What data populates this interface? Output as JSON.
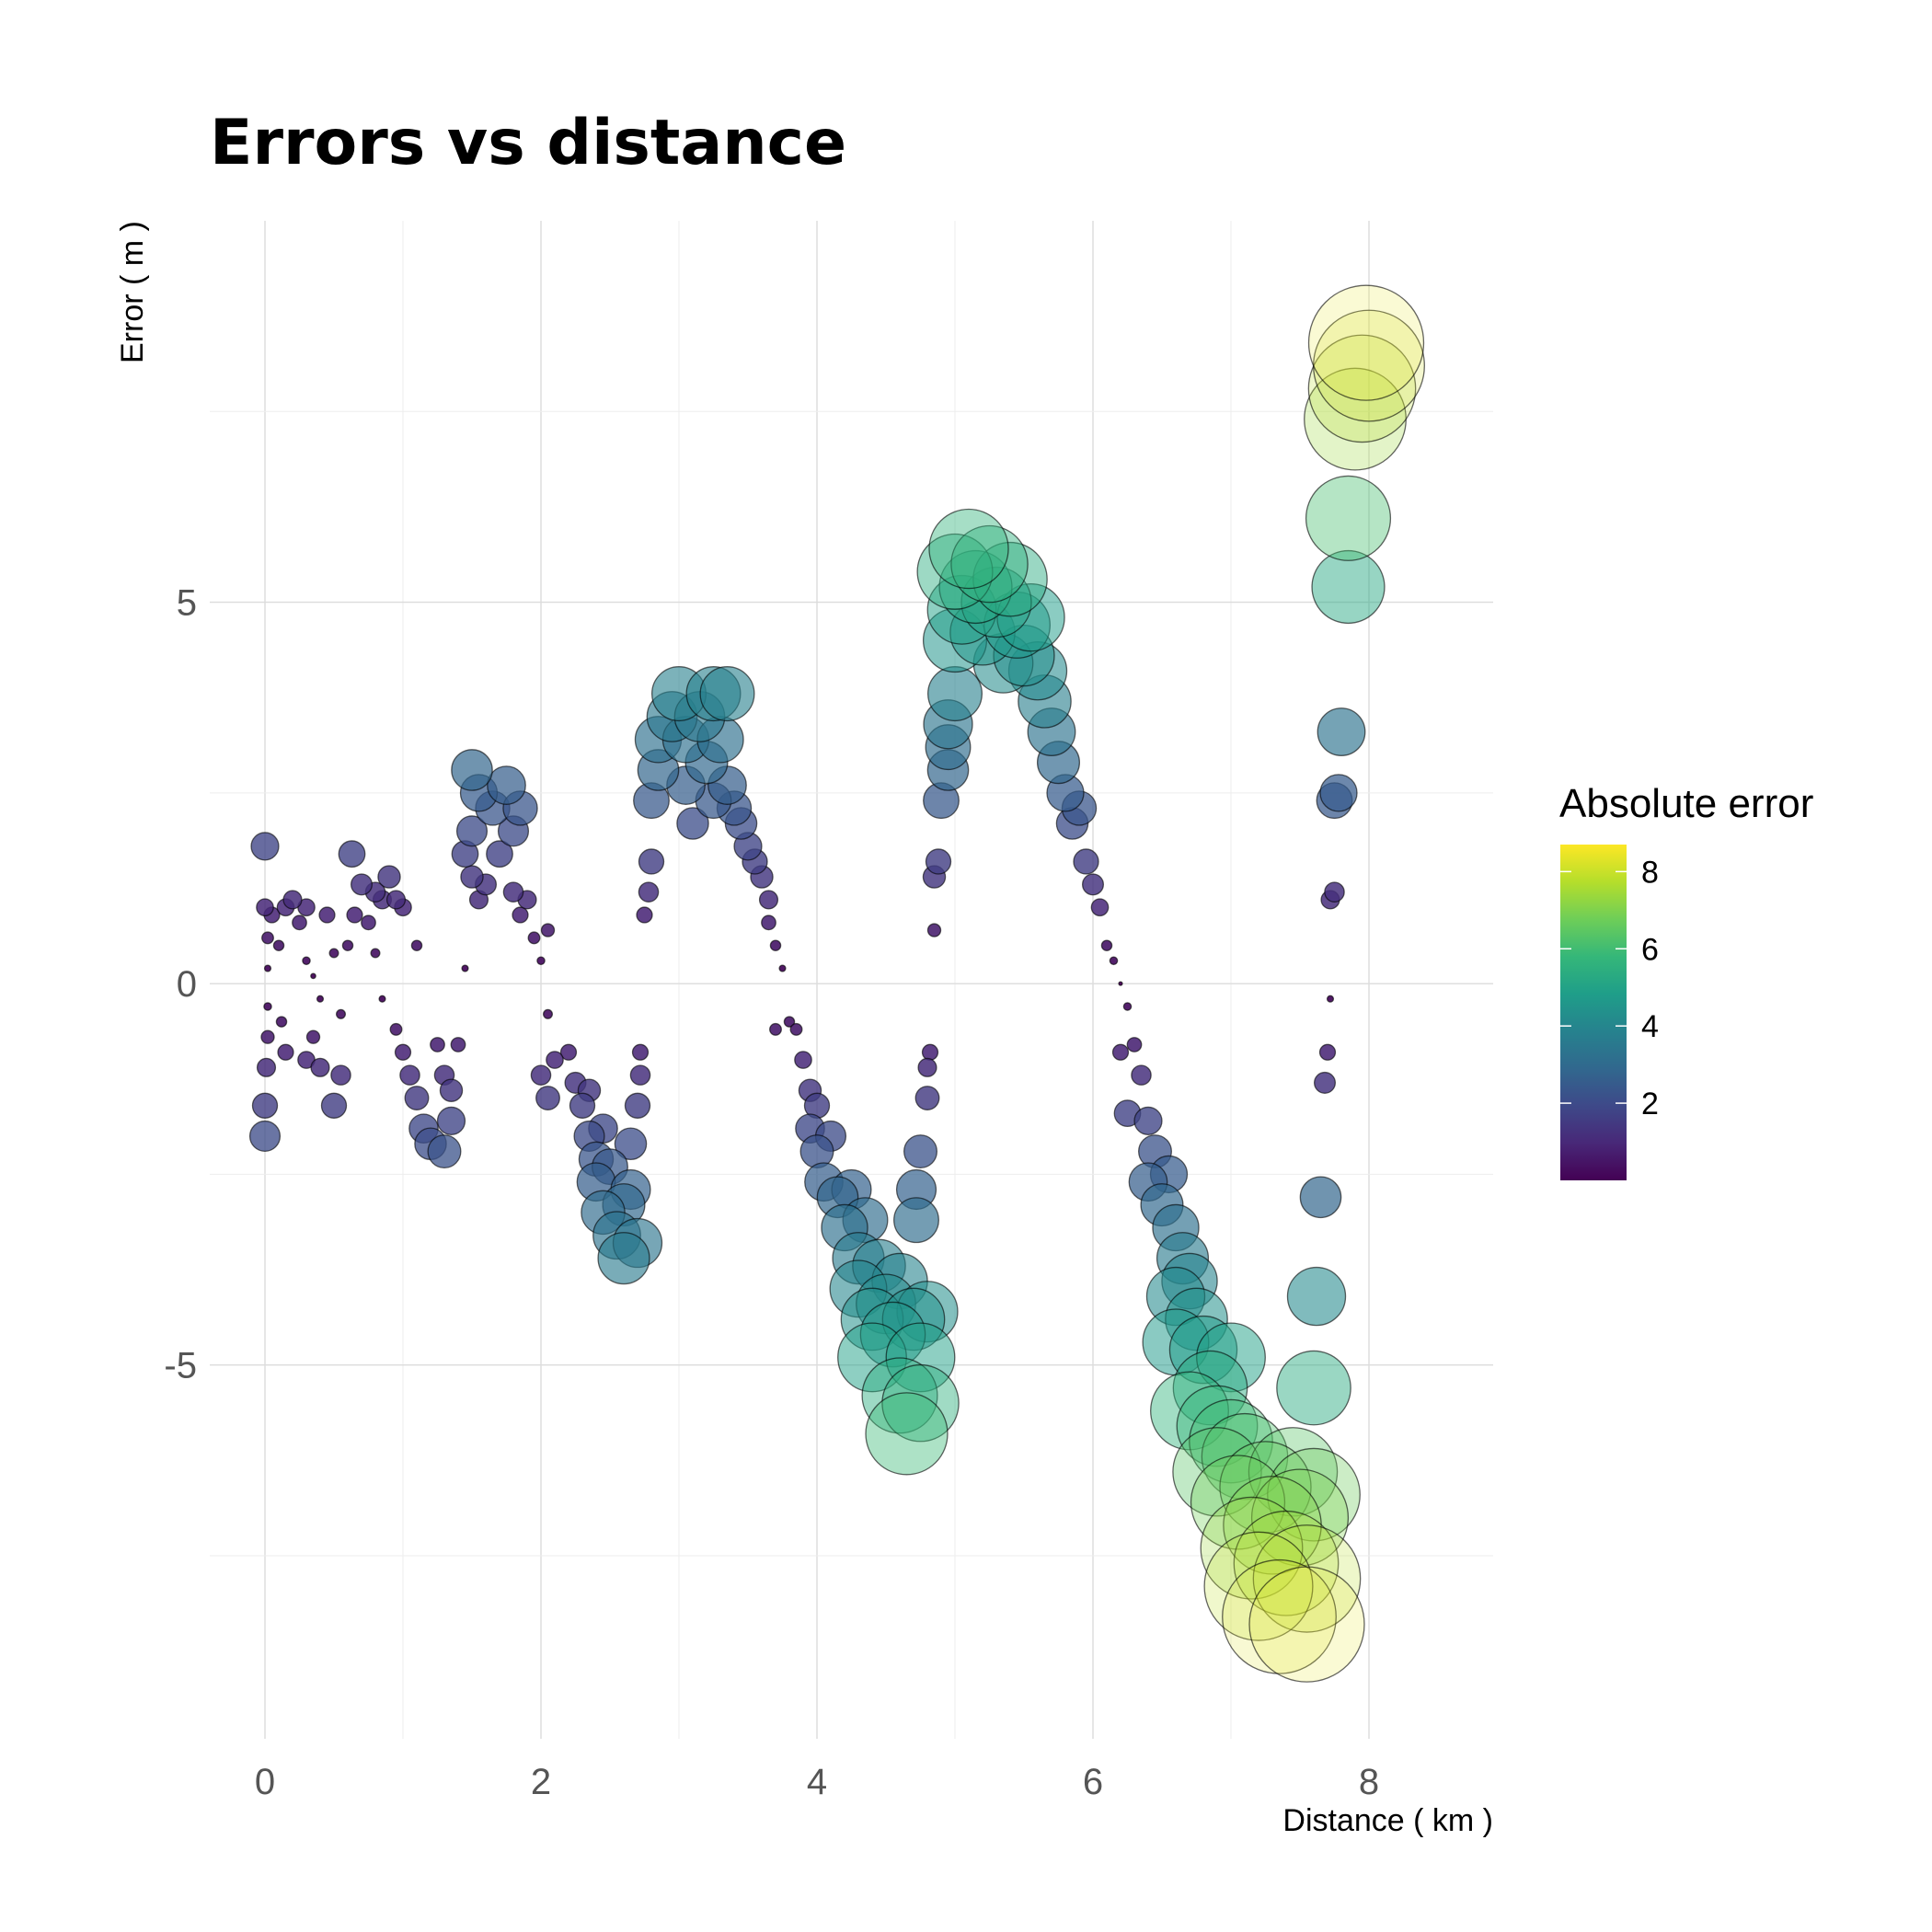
{
  "chart_data": {
    "type": "scatter",
    "title": "Errors vs distance",
    "xlabel": "Distance ( km )",
    "ylabel": "Error ( m )",
    "xlim": [
      -0.4,
      8.9
    ],
    "ylim": [
      -9.9,
      10.0
    ],
    "x_ticks": [
      0,
      2,
      4,
      6,
      8
    ],
    "y_ticks": [
      -5,
      0,
      5
    ],
    "grid": true,
    "legend": {
      "title": "Absolute error",
      "position": "right",
      "type": "colorbar",
      "range": [
        0,
        8.7
      ],
      "ticks": [
        2,
        4,
        6,
        8
      ],
      "colormap": "viridis",
      "colors": [
        "#440154",
        "#482878",
        "#3e4989",
        "#31688e",
        "#26828e",
        "#1f9e89",
        "#35b779",
        "#6ece58",
        "#b5de2b",
        "#fde725"
      ]
    },
    "encoding": {
      "color": "Absolute error",
      "size": "Absolute error"
    },
    "points": [
      {
        "x": 0.0,
        "y": 1.8
      },
      {
        "x": 0.0,
        "y": 1.0
      },
      {
        "x": 0.02,
        "y": 0.6
      },
      {
        "x": 0.02,
        "y": 0.2
      },
      {
        "x": 0.02,
        "y": -0.3
      },
      {
        "x": 0.02,
        "y": -0.7
      },
      {
        "x": 0.01,
        "y": -1.1
      },
      {
        "x": 0.0,
        "y": -1.6
      },
      {
        "x": 0.0,
        "y": -2.0
      },
      {
        "x": 0.05,
        "y": 0.9
      },
      {
        "x": 0.1,
        "y": 0.5
      },
      {
        "x": 0.12,
        "y": -0.5
      },
      {
        "x": 0.15,
        "y": -0.9
      },
      {
        "x": 0.15,
        "y": 1.0
      },
      {
        "x": 0.2,
        "y": 1.1
      },
      {
        "x": 0.25,
        "y": 0.8
      },
      {
        "x": 0.3,
        "y": 1.0
      },
      {
        "x": 0.3,
        "y": 0.3
      },
      {
        "x": 0.35,
        "y": 0.1
      },
      {
        "x": 0.4,
        "y": -0.2
      },
      {
        "x": 0.35,
        "y": -0.7
      },
      {
        "x": 0.3,
        "y": -1.0
      },
      {
        "x": 0.45,
        "y": 0.9
      },
      {
        "x": 0.4,
        "y": -1.1
      },
      {
        "x": 0.5,
        "y": -1.6
      },
      {
        "x": 0.55,
        "y": -1.2
      },
      {
        "x": 0.55,
        "y": -0.4
      },
      {
        "x": 0.5,
        "y": 0.4
      },
      {
        "x": 0.6,
        "y": 0.5
      },
      {
        "x": 0.65,
        "y": 0.9
      },
      {
        "x": 0.63,
        "y": 1.7
      },
      {
        "x": 0.7,
        "y": 1.3
      },
      {
        "x": 0.75,
        "y": 0.8
      },
      {
        "x": 0.8,
        "y": 1.2
      },
      {
        "x": 0.85,
        "y": 1.1
      },
      {
        "x": 0.9,
        "y": 1.4
      },
      {
        "x": 0.95,
        "y": 1.1
      },
      {
        "x": 1.0,
        "y": 1.0
      },
      {
        "x": 1.1,
        "y": 0.5
      },
      {
        "x": 0.8,
        "y": 0.4
      },
      {
        "x": 0.85,
        "y": -0.2
      },
      {
        "x": 0.95,
        "y": -0.6
      },
      {
        "x": 1.0,
        "y": -0.9
      },
      {
        "x": 1.05,
        "y": -1.2
      },
      {
        "x": 1.1,
        "y": -1.5
      },
      {
        "x": 1.15,
        "y": -1.9
      },
      {
        "x": 1.2,
        "y": -2.1
      },
      {
        "x": 1.3,
        "y": -2.2
      },
      {
        "x": 1.35,
        "y": -1.8
      },
      {
        "x": 1.3,
        "y": -1.2
      },
      {
        "x": 1.25,
        "y": -0.8
      },
      {
        "x": 1.4,
        "y": -0.8
      },
      {
        "x": 1.35,
        "y": -1.4
      },
      {
        "x": 1.45,
        "y": 0.2
      },
      {
        "x": 1.5,
        "y": 2.8
      },
      {
        "x": 1.55,
        "y": 2.5
      },
      {
        "x": 1.5,
        "y": 2.0
      },
      {
        "x": 1.45,
        "y": 1.7
      },
      {
        "x": 1.5,
        "y": 1.4
      },
      {
        "x": 1.55,
        "y": 1.1
      },
      {
        "x": 1.6,
        "y": 1.3
      },
      {
        "x": 1.65,
        "y": 2.3
      },
      {
        "x": 1.7,
        "y": 1.7
      },
      {
        "x": 1.75,
        "y": 2.6
      },
      {
        "x": 1.8,
        "y": 2.0
      },
      {
        "x": 1.85,
        "y": 2.3
      },
      {
        "x": 1.8,
        "y": 1.2
      },
      {
        "x": 1.85,
        "y": 0.9
      },
      {
        "x": 1.9,
        "y": 1.1
      },
      {
        "x": 1.95,
        "y": 0.6
      },
      {
        "x": 2.0,
        "y": 0.3
      },
      {
        "x": 2.05,
        "y": 0.7
      },
      {
        "x": 2.05,
        "y": -0.4
      },
      {
        "x": 2.0,
        "y": -1.2
      },
      {
        "x": 2.05,
        "y": -1.5
      },
      {
        "x": 2.1,
        "y": -1.0
      },
      {
        "x": 2.2,
        "y": -0.9
      },
      {
        "x": 2.25,
        "y": -1.3
      },
      {
        "x": 2.3,
        "y": -1.6
      },
      {
        "x": 2.35,
        "y": -1.4
      },
      {
        "x": 2.35,
        "y": -2.0
      },
      {
        "x": 2.4,
        "y": -2.3
      },
      {
        "x": 2.45,
        "y": -1.9
      },
      {
        "x": 2.4,
        "y": -2.6
      },
      {
        "x": 2.45,
        "y": -3.0
      },
      {
        "x": 2.5,
        "y": -2.4
      },
      {
        "x": 2.55,
        "y": -3.3
      },
      {
        "x": 2.6,
        "y": -2.9
      },
      {
        "x": 2.6,
        "y": -3.6
      },
      {
        "x": 2.65,
        "y": -2.1
      },
      {
        "x": 2.65,
        "y": -2.7
      },
      {
        "x": 2.7,
        "y": -3.4
      },
      {
        "x": 2.7,
        "y": -1.6
      },
      {
        "x": 2.72,
        "y": -1.2
      },
      {
        "x": 2.72,
        "y": -0.9
      },
      {
        "x": 2.75,
        "y": 0.9
      },
      {
        "x": 2.78,
        "y": 1.2
      },
      {
        "x": 2.8,
        "y": 1.6
      },
      {
        "x": 2.8,
        "y": 2.4
      },
      {
        "x": 2.85,
        "y": 2.8
      },
      {
        "x": 2.85,
        "y": 3.2
      },
      {
        "x": 2.95,
        "y": 3.5
      },
      {
        "x": 3.0,
        "y": 3.8
      },
      {
        "x": 3.05,
        "y": 3.2
      },
      {
        "x": 3.05,
        "y": 2.6
      },
      {
        "x": 3.1,
        "y": 2.1
      },
      {
        "x": 3.15,
        "y": 3.5
      },
      {
        "x": 3.2,
        "y": 2.9
      },
      {
        "x": 3.25,
        "y": 2.4
      },
      {
        "x": 3.25,
        "y": 3.8
      },
      {
        "x": 3.3,
        "y": 3.2
      },
      {
        "x": 3.35,
        "y": 2.6
      },
      {
        "x": 3.35,
        "y": 3.8
      },
      {
        "x": 3.4,
        "y": 2.3
      },
      {
        "x": 3.45,
        "y": 2.1
      },
      {
        "x": 3.5,
        "y": 1.8
      },
      {
        "x": 3.55,
        "y": 1.6
      },
      {
        "x": 3.6,
        "y": 1.4
      },
      {
        "x": 3.65,
        "y": 1.1
      },
      {
        "x": 3.65,
        "y": 0.8
      },
      {
        "x": 3.7,
        "y": 0.5
      },
      {
        "x": 3.75,
        "y": 0.2
      },
      {
        "x": 3.7,
        "y": -0.6
      },
      {
        "x": 3.8,
        "y": -0.5
      },
      {
        "x": 3.85,
        "y": -0.6
      },
      {
        "x": 3.9,
        "y": -1.0
      },
      {
        "x": 3.95,
        "y": -1.4
      },
      {
        "x": 3.95,
        "y": -1.9
      },
      {
        "x": 4.0,
        "y": -1.6
      },
      {
        "x": 4.0,
        "y": -2.2
      },
      {
        "x": 4.05,
        "y": -2.6
      },
      {
        "x": 4.1,
        "y": -2.0
      },
      {
        "x": 4.15,
        "y": -2.8
      },
      {
        "x": 4.2,
        "y": -3.2
      },
      {
        "x": 4.25,
        "y": -2.7
      },
      {
        "x": 4.3,
        "y": -3.6
      },
      {
        "x": 4.3,
        "y": -4.0
      },
      {
        "x": 4.35,
        "y": -3.1
      },
      {
        "x": 4.4,
        "y": -4.4
      },
      {
        "x": 4.4,
        "y": -4.9
      },
      {
        "x": 4.45,
        "y": -3.7
      },
      {
        "x": 4.5,
        "y": -4.2
      },
      {
        "x": 4.55,
        "y": -4.6
      },
      {
        "x": 4.6,
        "y": -3.9
      },
      {
        "x": 4.6,
        "y": -5.4
      },
      {
        "x": 4.65,
        "y": -5.9
      },
      {
        "x": 4.7,
        "y": -4.4
      },
      {
        "x": 4.75,
        "y": -4.9
      },
      {
        "x": 4.75,
        "y": -5.5
      },
      {
        "x": 4.8,
        "y": -4.3
      },
      {
        "x": 4.72,
        "y": -2.7
      },
      {
        "x": 4.72,
        "y": -3.1
      },
      {
        "x": 4.75,
        "y": -2.2
      },
      {
        "x": 4.8,
        "y": -1.5
      },
      {
        "x": 4.8,
        "y": -1.1
      },
      {
        "x": 4.82,
        "y": -0.9
      },
      {
        "x": 4.85,
        "y": 0.7
      },
      {
        "x": 4.85,
        "y": 1.4
      },
      {
        "x": 4.88,
        "y": 1.6
      },
      {
        "x": 4.9,
        "y": 2.4
      },
      {
        "x": 4.95,
        "y": 2.8
      },
      {
        "x": 4.95,
        "y": 3.1
      },
      {
        "x": 4.95,
        "y": 3.4
      },
      {
        "x": 5.0,
        "y": 3.8
      },
      {
        "x": 5.0,
        "y": 4.5
      },
      {
        "x": 5.0,
        "y": 5.4
      },
      {
        "x": 5.05,
        "y": 4.9
      },
      {
        "x": 5.1,
        "y": 5.7
      },
      {
        "x": 5.15,
        "y": 5.2
      },
      {
        "x": 5.2,
        "y": 4.6
      },
      {
        "x": 5.25,
        "y": 5.5
      },
      {
        "x": 5.3,
        "y": 5.0
      },
      {
        "x": 5.35,
        "y": 4.2
      },
      {
        "x": 5.4,
        "y": 5.3
      },
      {
        "x": 5.45,
        "y": 4.7
      },
      {
        "x": 5.5,
        "y": 4.3
      },
      {
        "x": 5.55,
        "y": 4.8
      },
      {
        "x": 5.6,
        "y": 4.1
      },
      {
        "x": 5.65,
        "y": 3.7
      },
      {
        "x": 5.7,
        "y": 3.3
      },
      {
        "x": 5.75,
        "y": 2.9
      },
      {
        "x": 5.8,
        "y": 2.5
      },
      {
        "x": 5.85,
        "y": 2.1
      },
      {
        "x": 5.9,
        "y": 2.3
      },
      {
        "x": 5.95,
        "y": 1.6
      },
      {
        "x": 6.0,
        "y": 1.3
      },
      {
        "x": 6.05,
        "y": 1.0
      },
      {
        "x": 6.1,
        "y": 0.5
      },
      {
        "x": 6.15,
        "y": 0.3
      },
      {
        "x": 6.2,
        "y": 0.0
      },
      {
        "x": 6.25,
        "y": -0.3
      },
      {
        "x": 6.2,
        "y": -0.9
      },
      {
        "x": 6.3,
        "y": -0.8
      },
      {
        "x": 6.35,
        "y": -1.2
      },
      {
        "x": 6.25,
        "y": -1.7
      },
      {
        "x": 6.4,
        "y": -1.8
      },
      {
        "x": 6.45,
        "y": -2.2
      },
      {
        "x": 6.4,
        "y": -2.6
      },
      {
        "x": 6.5,
        "y": -2.9
      },
      {
        "x": 6.55,
        "y": -2.5
      },
      {
        "x": 6.6,
        "y": -3.2
      },
      {
        "x": 6.65,
        "y": -3.6
      },
      {
        "x": 6.6,
        "y": -4.1
      },
      {
        "x": 6.7,
        "y": -3.9
      },
      {
        "x": 6.75,
        "y": -4.4
      },
      {
        "x": 6.6,
        "y": -4.7
      },
      {
        "x": 6.8,
        "y": -4.8
      },
      {
        "x": 6.85,
        "y": -5.3
      },
      {
        "x": 6.7,
        "y": -5.6
      },
      {
        "x": 6.9,
        "y": -5.8
      },
      {
        "x": 7.0,
        "y": -4.9
      },
      {
        "x": 6.9,
        "y": -6.4
      },
      {
        "x": 7.0,
        "y": -6.0
      },
      {
        "x": 7.05,
        "y": -6.8
      },
      {
        "x": 7.1,
        "y": -6.2
      },
      {
        "x": 7.15,
        "y": -7.4
      },
      {
        "x": 7.2,
        "y": -7.9
      },
      {
        "x": 7.25,
        "y": -6.6
      },
      {
        "x": 7.3,
        "y": -7.1
      },
      {
        "x": 7.35,
        "y": -8.3
      },
      {
        "x": 7.4,
        "y": -7.6
      },
      {
        "x": 7.45,
        "y": -6.4
      },
      {
        "x": 7.5,
        "y": -7.0
      },
      {
        "x": 7.55,
        "y": -8.4
      },
      {
        "x": 7.6,
        "y": -6.7
      },
      {
        "x": 7.55,
        "y": -7.8
      },
      {
        "x": 7.6,
        "y": -5.3
      },
      {
        "x": 7.62,
        "y": -4.1
      },
      {
        "x": 7.65,
        "y": -2.8
      },
      {
        "x": 7.68,
        "y": -1.3
      },
      {
        "x": 7.7,
        "y": -0.9
      },
      {
        "x": 7.72,
        "y": -0.2
      },
      {
        "x": 7.72,
        "y": 1.1
      },
      {
        "x": 7.75,
        "y": 1.2
      },
      {
        "x": 7.75,
        "y": 2.4
      },
      {
        "x": 7.78,
        "y": 2.5
      },
      {
        "x": 7.8,
        "y": 3.3
      },
      {
        "x": 7.85,
        "y": 5.2
      },
      {
        "x": 7.85,
        "y": 6.1
      },
      {
        "x": 7.9,
        "y": 7.4
      },
      {
        "x": 7.95,
        "y": 7.8
      },
      {
        "x": 8.0,
        "y": 8.1
      },
      {
        "x": 7.98,
        "y": 8.4
      }
    ]
  }
}
